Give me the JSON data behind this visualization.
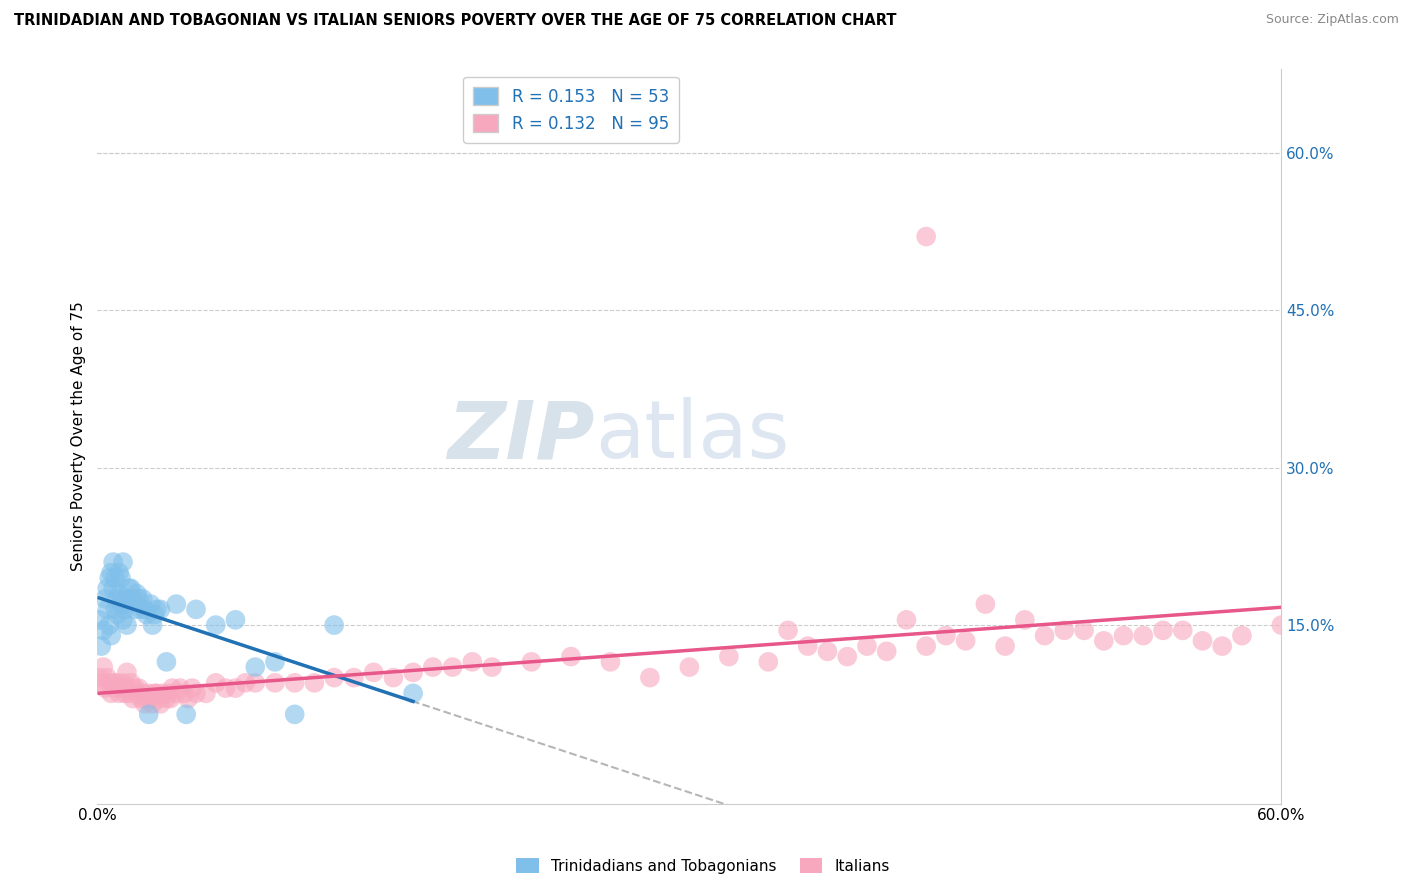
{
  "title": "TRINIDADIAN AND TOBAGONIAN VS ITALIAN SENIORS POVERTY OVER THE AGE OF 75 CORRELATION CHART",
  "source": "Source: ZipAtlas.com",
  "ylabel": "Seniors Poverty Over the Age of 75",
  "xlim": [
    0.0,
    0.6
  ],
  "ylim": [
    -0.02,
    0.68
  ],
  "yticks_right": [
    0.15,
    0.3,
    0.45,
    0.6
  ],
  "yticklabels_right": [
    "15.0%",
    "30.0%",
    "45.0%",
    "60.0%"
  ],
  "watermark_left": "ZIP",
  "watermark_right": "atlas",
  "legend_R1": "R = 0.153",
  "legend_N1": "N = 53",
  "legend_R2": "R = 0.132",
  "legend_N2": "N = 95",
  "color_blue": "#7fbfea",
  "color_pink": "#f8a8be",
  "color_blue_line": "#2171b5",
  "color_pink_line": "#e8578a",
  "color_legend_text": "#2171b5",
  "trinidadian_x": [
    0.001,
    0.002,
    0.003,
    0.004,
    0.005,
    0.005,
    0.006,
    0.006,
    0.007,
    0.007,
    0.008,
    0.008,
    0.009,
    0.009,
    0.01,
    0.01,
    0.011,
    0.011,
    0.012,
    0.012,
    0.013,
    0.013,
    0.014,
    0.014,
    0.015,
    0.015,
    0.016,
    0.017,
    0.018,
    0.019,
    0.02,
    0.021,
    0.022,
    0.023,
    0.024,
    0.025,
    0.026,
    0.027,
    0.028,
    0.029,
    0.03,
    0.032,
    0.035,
    0.04,
    0.045,
    0.05,
    0.06,
    0.07,
    0.08,
    0.09,
    0.1,
    0.12,
    0.16
  ],
  "trinidadian_y": [
    0.155,
    0.13,
    0.145,
    0.175,
    0.165,
    0.185,
    0.15,
    0.195,
    0.14,
    0.2,
    0.21,
    0.185,
    0.195,
    0.165,
    0.175,
    0.16,
    0.18,
    0.2,
    0.17,
    0.195,
    0.155,
    0.21,
    0.165,
    0.175,
    0.15,
    0.17,
    0.185,
    0.185,
    0.175,
    0.165,
    0.18,
    0.175,
    0.165,
    0.175,
    0.165,
    0.16,
    0.065,
    0.17,
    0.15,
    0.16,
    0.165,
    0.165,
    0.115,
    0.17,
    0.065,
    0.165,
    0.15,
    0.155,
    0.11,
    0.115,
    0.065,
    0.15,
    0.085
  ],
  "italian_x": [
    0.001,
    0.002,
    0.003,
    0.004,
    0.005,
    0.006,
    0.007,
    0.008,
    0.009,
    0.01,
    0.011,
    0.012,
    0.013,
    0.014,
    0.015,
    0.015,
    0.016,
    0.017,
    0.018,
    0.019,
    0.02,
    0.021,
    0.022,
    0.023,
    0.024,
    0.025,
    0.026,
    0.027,
    0.028,
    0.029,
    0.03,
    0.031,
    0.032,
    0.033,
    0.035,
    0.036,
    0.037,
    0.038,
    0.04,
    0.042,
    0.044,
    0.046,
    0.048,
    0.05,
    0.055,
    0.06,
    0.065,
    0.07,
    0.075,
    0.08,
    0.09,
    0.1,
    0.11,
    0.12,
    0.13,
    0.14,
    0.15,
    0.16,
    0.17,
    0.18,
    0.19,
    0.2,
    0.22,
    0.24,
    0.26,
    0.28,
    0.3,
    0.32,
    0.34,
    0.36,
    0.38,
    0.4,
    0.42,
    0.44,
    0.46,
    0.48,
    0.5,
    0.52,
    0.54,
    0.56,
    0.58,
    0.6,
    0.35,
    0.37,
    0.39,
    0.41,
    0.43,
    0.45,
    0.47,
    0.49,
    0.51,
    0.53,
    0.55,
    0.57,
    0.42
  ],
  "italian_y": [
    0.1,
    0.095,
    0.11,
    0.09,
    0.1,
    0.095,
    0.085,
    0.095,
    0.09,
    0.095,
    0.085,
    0.09,
    0.095,
    0.085,
    0.09,
    0.105,
    0.085,
    0.095,
    0.08,
    0.09,
    0.085,
    0.09,
    0.08,
    0.085,
    0.075,
    0.08,
    0.085,
    0.08,
    0.075,
    0.085,
    0.085,
    0.08,
    0.075,
    0.085,
    0.08,
    0.085,
    0.08,
    0.09,
    0.085,
    0.09,
    0.085,
    0.08,
    0.09,
    0.085,
    0.085,
    0.095,
    0.09,
    0.09,
    0.095,
    0.095,
    0.095,
    0.095,
    0.095,
    0.1,
    0.1,
    0.105,
    0.1,
    0.105,
    0.11,
    0.11,
    0.115,
    0.11,
    0.115,
    0.12,
    0.115,
    0.1,
    0.11,
    0.12,
    0.115,
    0.13,
    0.12,
    0.125,
    0.13,
    0.135,
    0.13,
    0.14,
    0.145,
    0.14,
    0.145,
    0.135,
    0.14,
    0.15,
    0.145,
    0.125,
    0.13,
    0.155,
    0.14,
    0.17,
    0.155,
    0.145,
    0.135,
    0.14,
    0.145,
    0.13,
    0.52
  ]
}
